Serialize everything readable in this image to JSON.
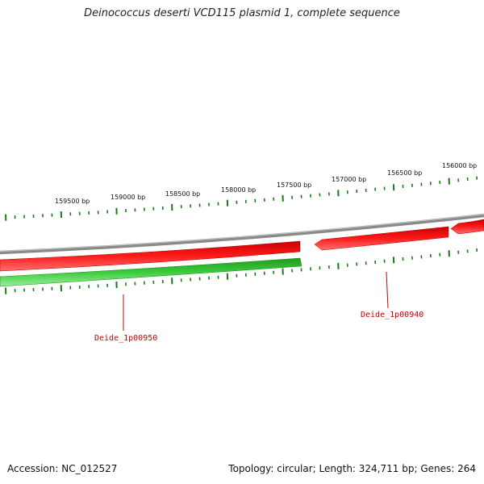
{
  "title": "Deinococcus deserti VCD115 plasmid 1, complete sequence",
  "accession": "Accession: NC_012527",
  "summary": "Topology: circular; Length: 324,711 bp; Genes: 264",
  "colors": {
    "backbone": "#8a8a8a",
    "reverse_gene": "#e00000",
    "reverse_gene_light": "#ff6a6a",
    "forward_gene": "#2fb82f",
    "forward_gene_light": "#8ee68e",
    "tick": "#1a7a1a",
    "label": "#cc0000"
  },
  "bp_labels": [
    "159500 bp",
    "159000 bp",
    "158500 bp",
    "158000 bp",
    "157500 bp",
    "157000 bp",
    "156500 bp",
    "156000 bp"
  ],
  "genes": [
    {
      "name": "Deide_1p00950",
      "strand": "reverse"
    },
    {
      "name": "Deide_1p00940",
      "strand": "reverse"
    }
  ]
}
